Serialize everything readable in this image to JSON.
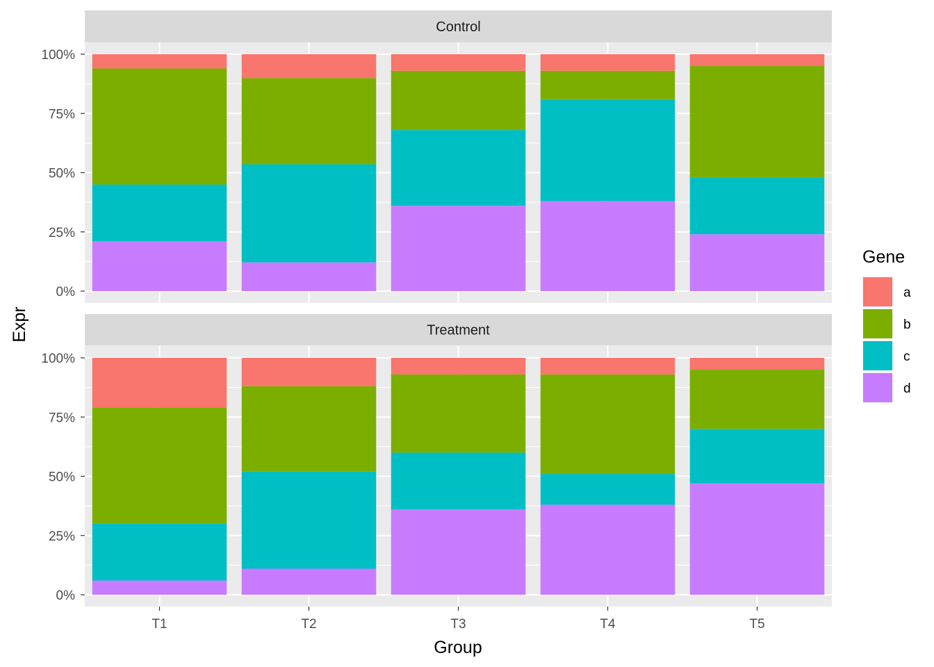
{
  "chart_data": {
    "type": "bar",
    "stacked": "fill",
    "xlabel": "Group",
    "ylabel": "Expr",
    "ylim": [
      0,
      1
    ],
    "y_ticks": [
      "0%",
      "25%",
      "50%",
      "75%",
      "100%"
    ],
    "categories": [
      "T1",
      "T2",
      "T3",
      "T4",
      "T5"
    ],
    "legend": {
      "title": "Gene",
      "position": "right",
      "entries": [
        {
          "key": "a",
          "color": "#F8766D"
        },
        {
          "key": "b",
          "color": "#7CAE00"
        },
        {
          "key": "c",
          "color": "#00BFC4"
        },
        {
          "key": "d",
          "color": "#C77CFF"
        }
      ]
    },
    "facets": [
      {
        "label": "Control",
        "series": [
          {
            "name": "a",
            "values": [
              0.06,
              0.1,
              0.07,
              0.07,
              0.05
            ]
          },
          {
            "name": "b",
            "values": [
              0.49,
              0.36,
              0.25,
              0.12,
              0.47
            ]
          },
          {
            "name": "c",
            "values": [
              0.24,
              0.41,
              0.32,
              0.43,
              0.24
            ]
          },
          {
            "name": "d",
            "values": [
              0.21,
              0.12,
              0.36,
              0.38,
              0.24
            ]
          }
        ]
      },
      {
        "label": "Treatment",
        "series": [
          {
            "name": "a",
            "values": [
              0.21,
              0.12,
              0.07,
              0.07,
              0.05
            ]
          },
          {
            "name": "b",
            "values": [
              0.49,
              0.36,
              0.33,
              0.42,
              0.25
            ]
          },
          {
            "name": "c",
            "values": [
              0.24,
              0.41,
              0.24,
              0.13,
              0.23
            ]
          },
          {
            "name": "d",
            "values": [
              0.06,
              0.11,
              0.36,
              0.38,
              0.47
            ]
          }
        ]
      }
    ],
    "grid": true
  }
}
